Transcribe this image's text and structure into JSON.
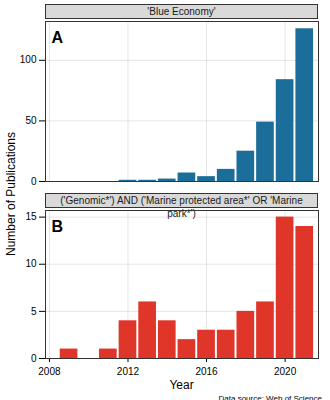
{
  "chart_data": [
    {
      "type": "bar",
      "title": "'Blue Economy'",
      "panel_label": "A",
      "color": "#1b6e99",
      "x": [
        2012,
        2013,
        2014,
        2015,
        2016,
        2017,
        2018,
        2019,
        2020,
        2021
      ],
      "values": [
        1,
        1,
        2,
        7,
        4,
        10,
        25,
        49,
        84,
        126
      ],
      "xlim": [
        2007.8,
        2021.7
      ],
      "xticks": [
        2008,
        2012,
        2016,
        2020
      ],
      "ylim": [
        0,
        132
      ],
      "yticks": [
        0,
        50,
        100
      ],
      "grid": true,
      "tick_labels": "y"
    },
    {
      "type": "bar",
      "title": "('Genomic*') AND ('Marine protected area*' OR 'Marine park*')",
      "panel_label": "B",
      "color": "#e0362a",
      "x": [
        2009,
        2011,
        2012,
        2013,
        2014,
        2015,
        2016,
        2017,
        2018,
        2019,
        2020,
        2021
      ],
      "values": [
        1,
        1,
        4,
        6,
        4,
        2,
        3,
        3,
        5,
        6,
        15,
        14
      ],
      "xlim": [
        2007.8,
        2021.7
      ],
      "xticks": [
        2008,
        2012,
        2016,
        2020
      ],
      "ylim": [
        0,
        15.7
      ],
      "yticks": [
        0,
        5,
        10,
        15
      ],
      "grid": true,
      "x_label": "Year"
    }
  ],
  "y_label": "Number of Publications",
  "caption": "Data source: Web of Science"
}
